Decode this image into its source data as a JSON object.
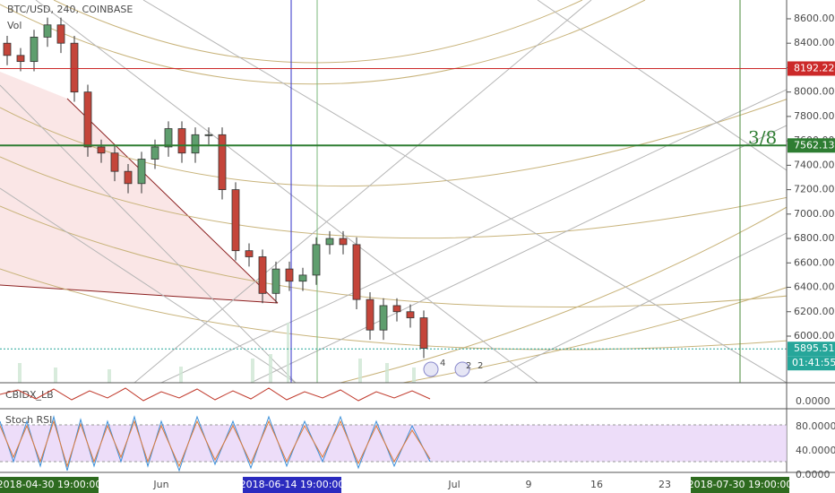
{
  "header": {
    "symbol": "BTC/USD, 240, COINBASE",
    "volume": "Vol"
  },
  "chart_data": {
    "type": "candlestick",
    "open": [
      8400,
      8300,
      8250,
      8450,
      8550,
      8400,
      8000,
      7550,
      7500,
      7350,
      7250,
      7450,
      7550,
      7700,
      7500,
      7650,
      7650,
      7200,
      6700,
      6650,
      6350,
      6550,
      6450,
      6500,
      6750,
      6800,
      6750,
      6300,
      6050,
      6250,
      6200,
      6150
    ],
    "high": [
      8460,
      8360,
      8510,
      8610,
      8610,
      8460,
      8060,
      7610,
      7560,
      7410,
      7510,
      7610,
      7760,
      7760,
      7710,
      7710,
      7710,
      7260,
      6760,
      6710,
      6610,
      6610,
      6560,
      6810,
      6860,
      6860,
      6810,
      6360,
      6310,
      6310,
      6260,
      6210
    ],
    "low": [
      8220,
      8170,
      8170,
      8370,
      8320,
      7920,
      7470,
      7420,
      7270,
      7170,
      7170,
      7370,
      7470,
      7420,
      7420,
      7570,
      7120,
      6620,
      6570,
      6270,
      6270,
      6370,
      6370,
      6420,
      6670,
      6670,
      6220,
      5970,
      5970,
      6120,
      6070,
      5820
    ],
    "close": [
      8300,
      8250,
      8450,
      8550,
      8400,
      8000,
      7550,
      7500,
      7350,
      7250,
      7450,
      7550,
      7700,
      7500,
      7650,
      7650,
      7200,
      6700,
      6650,
      6350,
      6550,
      6450,
      6500,
      6750,
      6800,
      6750,
      6300,
      6050,
      6250,
      6200,
      6150,
      5900
    ],
    "up_color": "#5f9e6e",
    "down_color": "#c4453a",
    "ylim": [
      5618,
      8754
    ],
    "yticks": [
      {
        "value": 8600,
        "label": "8600.00"
      },
      {
        "value": 8400,
        "label": "8400.00"
      },
      {
        "value": 8200,
        "label": "8200.00"
      },
      {
        "value": 8000,
        "label": "8000.00"
      },
      {
        "value": 7800,
        "label": "7800.00"
      },
      {
        "value": 7600,
        "label": "7600.00"
      },
      {
        "value": 7400,
        "label": "7400.00"
      },
      {
        "value": 7200,
        "label": "7200.00"
      },
      {
        "value": 7000,
        "label": "7000.00"
      },
      {
        "value": 6800,
        "label": "6800.00"
      },
      {
        "value": 6600,
        "label": "6600.00"
      },
      {
        "value": 6400,
        "label": "6400.00"
      },
      {
        "value": 6200,
        "label": "6200.00"
      },
      {
        "value": 6000,
        "label": "6000.00"
      }
    ],
    "levels": [
      {
        "value": 8192.22,
        "color": "#cc2929"
      },
      {
        "value": 7562.13,
        "color": "#2e7d32"
      },
      {
        "value": 5895.51,
        "color": "#26a69a"
      }
    ],
    "countdown": "01:41:55",
    "annotation": "3/8"
  },
  "events": [
    "4",
    "2",
    "2"
  ],
  "cbidx": {
    "title": "CBIDX_LB",
    "tick": "0.0000"
  },
  "stoch": {
    "title": "Stoch RSI",
    "ticks": [
      "80.0000",
      "40.0000",
      "0.0000"
    ]
  },
  "time_axis": [
    "2018-04-30 19:00:00",
    "Jun",
    "2018-06-14 19:00:00",
    "Jul",
    "9",
    "16",
    "23",
    "2018-07-30 19:00:00"
  ]
}
